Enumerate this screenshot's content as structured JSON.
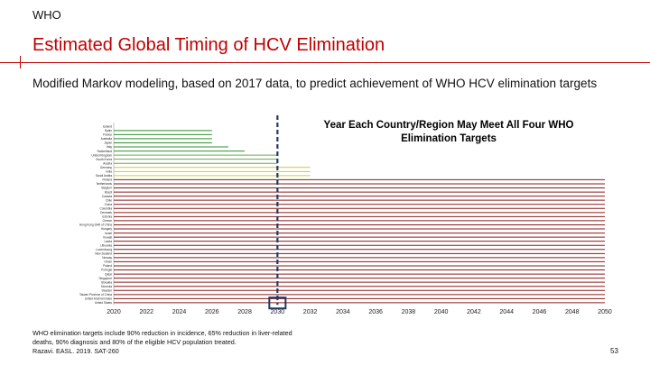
{
  "header": {
    "org": "WHO"
  },
  "slide": {
    "title": "Estimated Global Timing of HCV Elimination",
    "subtitle": "Modified Markov modeling, based on 2017 data, to predict achievement of WHO HCV elimination targets",
    "footnote_line1": "WHO elimination targets include 90% reduction in incidence, 65% reduction in liver-related",
    "footnote_line2": "deaths, 90% diagnosis and 80% of the eligible HCV population treated.",
    "footnote_line3": "Razavi. EASL. 2019. SAT-260",
    "page_number": "53"
  },
  "chart_data": {
    "type": "bar",
    "orientation": "horizontal",
    "title": "Year Each Country/Region May Meet All Four WHO Elimination Targets",
    "x_ticks": [
      "2020",
      "2022",
      "2024",
      "2026",
      "2028",
      "2030",
      "2032",
      "2034",
      "2036",
      "2038",
      "2040",
      "2042",
      "2044",
      "2046",
      "2048",
      "2050"
    ],
    "xlim": [
      2020,
      2050
    ],
    "target_year": 2030,
    "categories": [
      "Iceland",
      "Spain",
      "France",
      "Australia",
      "Japan",
      "Italy",
      "Switzerland",
      "United Kingdom",
      "South Korea",
      "Austria",
      "Germany",
      "India",
      "Saudi Arabia",
      "Finland",
      "Netherlands",
      "Belgium",
      "Brazil",
      "Canada",
      "Chile",
      "China",
      "Colombia",
      "Denmark",
      "Estonia",
      "Greece",
      "Hong Kong SAR of China",
      "Hungary",
      "Israel",
      "Kuwait",
      "Latvia",
      "Lithuania",
      "Luxembourg",
      "New Zealand",
      "Norway",
      "Oman",
      "Poland",
      "Portugal",
      "Qatar",
      "Singapore",
      "Slovakia",
      "Slovenia",
      "Sweden",
      "Taiwan Province of China",
      "United Arab Emirates",
      "United States"
    ],
    "values": [
      2020,
      2026,
      2026,
      2026,
      2026,
      2027,
      2028,
      2030,
      2030,
      2030,
      2032,
      2032,
      2032,
      2050,
      2050,
      2050,
      2050,
      2050,
      2050,
      2050,
      2050,
      2050,
      2050,
      2050,
      2050,
      2050,
      2050,
      2050,
      2050,
      2050,
      2050,
      2050,
      2050,
      2050,
      2050,
      2050,
      2050,
      2050,
      2050,
      2050,
      2050,
      2050,
      2050,
      2050
    ],
    "colors": {
      "before_2030": "#2f8f2f",
      "by_2030": "#6aa84f",
      "after_2030_early": "#cccc33",
      "after_2050": "#8b1a1a",
      "target_box": "#1f3864",
      "target_line": "#1f3864"
    },
    "grid": false,
    "legend": "none"
  }
}
